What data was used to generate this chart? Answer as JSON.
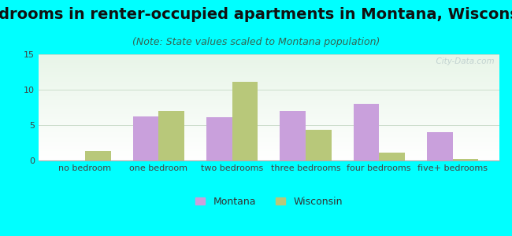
{
  "title": "Bedrooms in renter-occupied apartments in Montana, Wisconsin",
  "subtitle": "(Note: State values scaled to Montana population)",
  "categories": [
    "no bedroom",
    "one bedroom",
    "two bedrooms",
    "three bedrooms",
    "four bedrooms",
    "five+ bedrooms"
  ],
  "montana_values": [
    0,
    6.2,
    6.1,
    7.0,
    8.0,
    4.0
  ],
  "wisconsin_values": [
    1.3,
    7.0,
    11.1,
    4.3,
    1.1,
    0.2
  ],
  "montana_color": "#c9a0dc",
  "wisconsin_color": "#b8c87a",
  "background_color": "#00FFFF",
  "ylim": [
    0,
    15
  ],
  "yticks": [
    0,
    5,
    10,
    15
  ],
  "bar_width": 0.35,
  "title_fontsize": 14,
  "subtitle_fontsize": 9,
  "tick_fontsize": 8,
  "legend_fontsize": 9,
  "watermark": "  City-Data.com"
}
